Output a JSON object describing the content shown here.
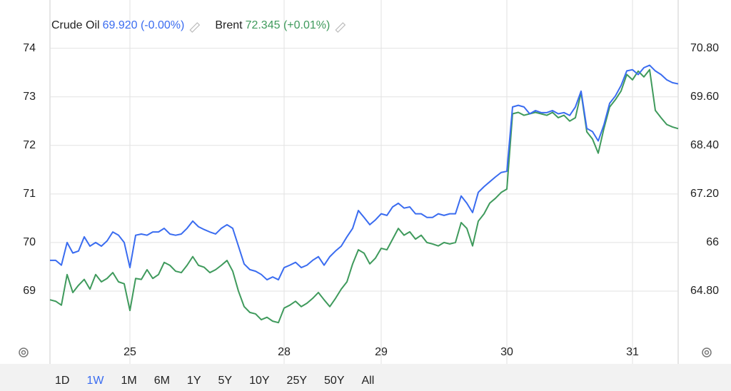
{
  "chart_data": {
    "type": "line",
    "categories": [
      null,
      null,
      null,
      null,
      null,
      null,
      null,
      null,
      null,
      null,
      null,
      null,
      null,
      null,
      "25",
      null,
      null,
      null,
      null,
      null,
      null,
      null,
      null,
      null,
      null,
      null,
      null,
      null,
      null,
      null,
      null,
      null,
      null,
      null,
      null,
      null,
      null,
      null,
      null,
      null,
      null,
      "28",
      null,
      null,
      null,
      null,
      null,
      null,
      null,
      null,
      null,
      null,
      null,
      null,
      null,
      null,
      null,
      null,
      "29",
      null,
      null,
      null,
      null,
      null,
      null,
      null,
      null,
      null,
      null,
      null,
      null,
      null,
      null,
      null,
      null,
      null,
      null,
      null,
      null,
      null,
      "30",
      null,
      null,
      null,
      null,
      null,
      null,
      null,
      null,
      null,
      null,
      null,
      null,
      null,
      null,
      null,
      null,
      null,
      null,
      null,
      null,
      null,
      "31",
      null,
      null,
      null,
      null,
      null,
      null,
      null,
      null
    ],
    "series": [
      {
        "name": "Crude Oil",
        "header_value": "69.920 (-0.00%)",
        "color": "#3a6cf0",
        "axis": "y2",
        "values": [
          65.56,
          65.56,
          65.44,
          66.0,
          65.74,
          65.79,
          66.14,
          65.91,
          66.0,
          65.91,
          66.04,
          66.26,
          66.18,
          66.0,
          65.38,
          66.18,
          66.21,
          66.18,
          66.26,
          66.26,
          66.35,
          66.21,
          66.18,
          66.21,
          66.35,
          66.53,
          66.39,
          66.32,
          66.26,
          66.21,
          66.35,
          66.44,
          66.35,
          65.91,
          65.47,
          65.33,
          65.29,
          65.21,
          65.08,
          65.15,
          65.08,
          65.38,
          65.44,
          65.51,
          65.38,
          65.44,
          65.56,
          65.65,
          65.44,
          65.65,
          65.79,
          65.91,
          66.14,
          66.35,
          66.79,
          66.62,
          66.44,
          66.56,
          66.71,
          66.67,
          66.88,
          66.97,
          66.85,
          66.88,
          66.71,
          66.71,
          66.62,
          66.62,
          66.71,
          66.67,
          66.71,
          66.71,
          67.15,
          66.97,
          66.74,
          67.24,
          67.38,
          67.5,
          67.62,
          67.73,
          67.76,
          69.35,
          69.39,
          69.35,
          69.18,
          69.26,
          69.21,
          69.21,
          69.26,
          69.18,
          69.21,
          69.14,
          69.35,
          69.74,
          68.82,
          68.74,
          68.51,
          68.91,
          69.44,
          69.62,
          69.88,
          70.24,
          70.27,
          70.15,
          70.32,
          70.38,
          70.24,
          70.15,
          70.02,
          69.95,
          69.92
        ]
      },
      {
        "name": "Brent",
        "header_value": "72.345 (+0.01%)",
        "color": "#3f9a5c",
        "values": [
          68.82,
          68.79,
          68.71,
          69.34,
          68.97,
          69.12,
          69.24,
          69.04,
          69.34,
          69.19,
          69.26,
          69.38,
          69.19,
          69.15,
          68.6,
          69.26,
          69.24,
          69.44,
          69.26,
          69.34,
          69.59,
          69.53,
          69.41,
          69.38,
          69.53,
          69.71,
          69.53,
          69.49,
          69.38,
          69.44,
          69.53,
          69.63,
          69.41,
          69.0,
          68.68,
          68.56,
          68.53,
          68.41,
          68.46,
          68.38,
          68.35,
          68.65,
          68.71,
          68.79,
          68.68,
          68.75,
          68.85,
          68.97,
          68.82,
          68.68,
          68.85,
          69.04,
          69.19,
          69.56,
          69.85,
          69.78,
          69.56,
          69.68,
          69.88,
          69.85,
          70.07,
          70.29,
          70.15,
          70.22,
          70.07,
          70.15,
          70.0,
          69.97,
          69.93,
          70.0,
          69.97,
          70.0,
          70.41,
          70.29,
          69.93,
          70.44,
          70.59,
          70.81,
          70.91,
          71.03,
          71.1,
          72.65,
          72.68,
          72.62,
          72.65,
          72.68,
          72.65,
          72.62,
          72.68,
          72.57,
          72.62,
          72.5,
          72.57,
          73.09,
          72.28,
          72.13,
          71.84,
          72.35,
          72.79,
          72.94,
          73.12,
          73.46,
          73.35,
          73.53,
          73.41,
          73.56,
          72.72,
          72.57,
          72.43,
          72.38,
          72.345
        ]
      }
    ],
    "ylim": [
      68,
      74.7
    ],
    "yticks": [
      69,
      70,
      71,
      72,
      73,
      74
    ],
    "y2lim": [
      63.6,
      71.64
    ],
    "y2ticks": [
      {
        "value": 64.8,
        "label": "64.80"
      },
      66,
      {
        "value": 67.2,
        "label": "67.20"
      },
      {
        "value": 68.4,
        "label": "68.40"
      },
      {
        "value": 69.6,
        "label": "69.60"
      },
      {
        "value": 70.8,
        "label": "70.80"
      }
    ],
    "grid": true,
    "range_buttons": [
      "1D",
      "1W",
      "1M",
      "6M",
      "1Y",
      "5Y",
      "10Y",
      "25Y",
      "50Y",
      "All"
    ],
    "selected_range": "1W"
  }
}
